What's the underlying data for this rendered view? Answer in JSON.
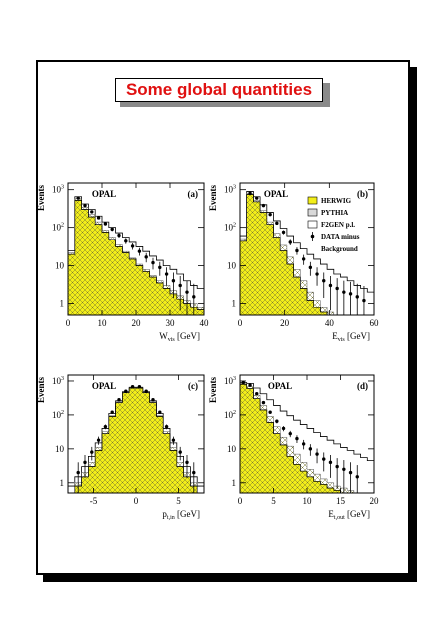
{
  "page_title": "Some global quantities",
  "colors": {
    "herwig": "#f2ee1a",
    "hatch": "#9a9a3a",
    "frame": "#000000",
    "title": "#e01010"
  },
  "legend": [
    {
      "label": "HERWIG",
      "style": "filled-yellow"
    },
    {
      "label": "PYTHIA",
      "style": "hatched-grey"
    },
    {
      "label": "F2GEN p.l.",
      "style": "open-box"
    },
    {
      "label": "DATA minus",
      "style": "point-with-error"
    },
    {
      "label": "Background",
      "style": "none"
    }
  ],
  "chart_data": [
    {
      "type": "histogram",
      "panel": "(a)",
      "experiment": "OPAL",
      "ylabel": "Events",
      "xlabel": "W",
      "xlabel_sub": "vis",
      "xlabel_unit": "[GeV]",
      "xlim": [
        0,
        40
      ],
      "ylim": [
        0.5,
        1500
      ],
      "yscale": "log",
      "xticks": [
        0,
        10,
        20,
        30,
        40
      ],
      "xticklabels": [
        "0",
        "10",
        "20",
        "30",
        "40"
      ],
      "yticks": [
        1,
        10,
        100,
        1000
      ],
      "yticklabels": [
        "1",
        "10",
        "10^2",
        "10^3"
      ],
      "bins": [
        0,
        2,
        4,
        6,
        8,
        10,
        12,
        14,
        16,
        18,
        20,
        22,
        24,
        26,
        28,
        30,
        32,
        34,
        36,
        38,
        40
      ],
      "series": [
        {
          "name": "F2GEN p.l.",
          "values": [
            25,
            650,
            420,
            300,
            200,
            140,
            100,
            72,
            55,
            42,
            32,
            24,
            18,
            14,
            10,
            8,
            6,
            4,
            3,
            2.5
          ]
        },
        {
          "name": "PYTHIA",
          "values": [
            22,
            580,
            340,
            220,
            140,
            85,
            55,
            36,
            24,
            16,
            11,
            8,
            5.5,
            4,
            3,
            2.2,
            1.6,
            1.2,
            1,
            0.8
          ]
        },
        {
          "name": "HERWIG",
          "values": [
            20,
            520,
            300,
            190,
            120,
            75,
            48,
            32,
            22,
            15,
            10,
            7,
            5,
            3.5,
            2.5,
            1.8,
            1.3,
            1,
            0.8,
            0.7
          ]
        },
        {
          "name": "DATA minus Background",
          "x": [
            3,
            5,
            7,
            9,
            11,
            13,
            15,
            17,
            19,
            21,
            23,
            25,
            27,
            29,
            31,
            33,
            35,
            37
          ],
          "values": [
            600,
            380,
            260,
            180,
            125,
            90,
            62,
            45,
            33,
            24,
            17,
            12,
            9,
            6,
            4,
            3,
            2,
            1.5
          ]
        }
      ]
    },
    {
      "type": "histogram",
      "panel": "(b)",
      "experiment": "OPAL",
      "ylabel": "Events",
      "xlabel": "E",
      "xlabel_sub": "vis",
      "xlabel_unit": "[GeV]",
      "xlim": [
        0,
        60
      ],
      "ylim": [
        0.5,
        1500
      ],
      "yscale": "log",
      "xticks": [
        0,
        20,
        40,
        60
      ],
      "xticklabels": [
        "0",
        "20",
        "40",
        "60"
      ],
      "yticks": [
        1,
        10,
        100,
        1000
      ],
      "yticklabels": [
        "1",
        "10",
        "10^2",
        "10^3"
      ],
      "bins": [
        0,
        3,
        6,
        9,
        12,
        15,
        18,
        21,
        24,
        27,
        30,
        33,
        36,
        39,
        42,
        45,
        48,
        51,
        54,
        57,
        60
      ],
      "series": [
        {
          "name": "F2GEN p.l.",
          "values": [
            60,
            900,
            650,
            400,
            250,
            150,
            95,
            60,
            40,
            28,
            20,
            15,
            11,
            8,
            6,
            5,
            4,
            3,
            2.5,
            2
          ]
        },
        {
          "name": "PYTHIA",
          "values": [
            50,
            800,
            520,
            280,
            140,
            70,
            35,
            17,
            8,
            4,
            2,
            1.2,
            0.8,
            0.6,
            0.5,
            0.5,
            0.5,
            0.5,
            0.5,
            0.5
          ]
        },
        {
          "name": "HERWIG",
          "values": [
            45,
            750,
            480,
            250,
            120,
            55,
            25,
            11,
            5,
            2.5,
            1.2,
            0.8,
            0.6,
            0.5,
            0.5,
            0.5,
            0.5,
            0.5,
            0.5,
            0.5
          ]
        },
        {
          "name": "DATA minus Background",
          "x": [
            4.5,
            7.5,
            10.5,
            13.5,
            16.5,
            19.5,
            22.5,
            25.5,
            28.5,
            31.5,
            34.5,
            37.5,
            40.5,
            43.5,
            46.5,
            49.5,
            52.5,
            55.5
          ],
          "values": [
            800,
            600,
            380,
            220,
            130,
            75,
            42,
            25,
            15,
            9,
            6,
            4,
            3,
            2.5,
            2,
            1.8,
            1.5,
            1.2
          ]
        }
      ]
    },
    {
      "type": "histogram",
      "panel": "(c)",
      "experiment": "OPAL",
      "ylabel": "Events",
      "xlabel": "p",
      "xlabel_sub": "t,in",
      "xlabel_unit": "[GeV]",
      "xlim": [
        -8,
        8
      ],
      "ylim": [
        0.5,
        1500
      ],
      "yscale": "log",
      "xticks": [
        -5,
        0,
        5
      ],
      "xticklabels": [
        "-5",
        "0",
        "5"
      ],
      "yticks": [
        1,
        10,
        100,
        1000
      ],
      "yticklabels": [
        "1",
        "10",
        "10^2",
        "10^3"
      ],
      "bins": [
        -8,
        -7.2,
        -6.4,
        -5.6,
        -4.8,
        -4,
        -3.2,
        -2.4,
        -1.6,
        -0.8,
        0,
        0.8,
        1.6,
        2.4,
        3.2,
        4,
        4.8,
        5.6,
        6.4,
        7.2,
        8
      ],
      "series": [
        {
          "name": "F2GEN p.l.",
          "values": [
            0.8,
            1.5,
            3,
            6,
            15,
            40,
            110,
            260,
            480,
            650,
            650,
            480,
            260,
            110,
            40,
            15,
            6,
            3,
            1.5,
            0.8
          ]
        },
        {
          "name": "PYTHIA",
          "values": [
            0.5,
            1,
            2,
            4,
            11,
            32,
            95,
            240,
            460,
            640,
            640,
            460,
            240,
            95,
            32,
            11,
            4,
            2,
            1,
            0.5
          ]
        },
        {
          "name": "HERWIG",
          "values": [
            0.5,
            0.8,
            1.5,
            3,
            9,
            28,
            90,
            230,
            450,
            620,
            620,
            450,
            230,
            90,
            28,
            9,
            3,
            1.5,
            0.8,
            0.5
          ]
        },
        {
          "name": "DATA minus Background",
          "x": [
            -6.8,
            -6,
            -5.2,
            -4.4,
            -3.6,
            -2.8,
            -2,
            -1.2,
            -0.4,
            0.4,
            1.2,
            2,
            2.8,
            3.6,
            4.4,
            5.2,
            6,
            6.8
          ],
          "values": [
            2,
            4,
            8,
            18,
            45,
            120,
            280,
            500,
            680,
            680,
            500,
            280,
            120,
            45,
            18,
            8,
            4,
            2
          ]
        }
      ]
    },
    {
      "type": "histogram",
      "panel": "(d)",
      "experiment": "OPAL",
      "ylabel": "Events",
      "xlabel": "E",
      "xlabel_sub": "t,out",
      "xlabel_unit": "[GeV]",
      "xlim": [
        0,
        20
      ],
      "ylim": [
        0.5,
        1500
      ],
      "yscale": "log",
      "xticks": [
        0,
        5,
        10,
        15,
        20
      ],
      "xticklabels": [
        "0",
        "5",
        "10",
        "15",
        "20"
      ],
      "yticks": [
        1,
        10,
        100,
        1000
      ],
      "yticklabels": [
        "1",
        "10",
        "10^2",
        "10^3"
      ],
      "bins": [
        0,
        1,
        2,
        3,
        4,
        5,
        6,
        7,
        8,
        9,
        10,
        11,
        12,
        13,
        14,
        15,
        16,
        17,
        18,
        19,
        20
      ],
      "series": [
        {
          "name": "F2GEN p.l.",
          "values": [
            900,
            850,
            620,
            420,
            280,
            190,
            130,
            95,
            70,
            52,
            40,
            30,
            23,
            18,
            14,
            11,
            9,
            7,
            5.5,
            4.5
          ]
        },
        {
          "name": "PYTHIA",
          "values": [
            850,
            700,
            380,
            190,
            90,
            45,
            22,
            12,
            7,
            4,
            2.5,
            1.8,
            1.3,
            1,
            0.8,
            0.7,
            0.6,
            0.5,
            0.5,
            0.5
          ]
        },
        {
          "name": "HERWIG",
          "values": [
            800,
            600,
            300,
            140,
            60,
            28,
            13,
            6,
            3.5,
            2.2,
            1.5,
            1.1,
            0.9,
            0.7,
            0.6,
            0.5,
            0.5,
            0.5,
            0.5,
            0.5
          ]
        },
        {
          "name": "DATA minus Background",
          "x": [
            0.5,
            1.5,
            2.5,
            3.5,
            4.5,
            5.5,
            6.5,
            7.5,
            8.5,
            9.5,
            10.5,
            11.5,
            12.5,
            13.5,
            14.5,
            15.5,
            16.5,
            17.5
          ],
          "values": [
            900,
            750,
            420,
            230,
            120,
            65,
            40,
            28,
            20,
            14,
            10,
            7,
            5,
            4,
            3,
            2.5,
            2,
            1.5
          ]
        }
      ]
    }
  ]
}
